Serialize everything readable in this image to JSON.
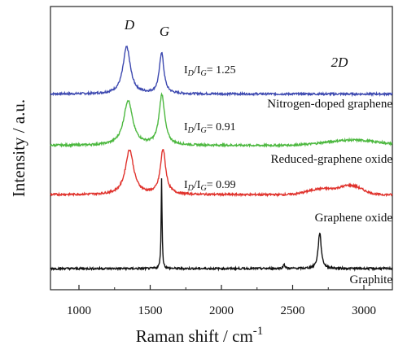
{
  "chart_data": {
    "type": "line",
    "title": "",
    "xlabel": "Raman shift / cm",
    "xlabel_sup": "-1",
    "ylabel": "Intensity / a.u.",
    "xlim": [
      800,
      3200
    ],
    "x_ticks": [
      1000,
      1500,
      2000,
      2500,
      3000
    ],
    "grid": false,
    "legend": "none",
    "peak_labels": [
      {
        "text": "D",
        "x": 1350
      },
      {
        "text": "G",
        "x": 1582
      },
      {
        "text": "2D",
        "x": 2700
      }
    ],
    "series": [
      {
        "name": "Nitrogen-doped graphene",
        "color": "#3d49b0",
        "ratio": "1.25",
        "baseline": 3.9,
        "peaks": [
          {
            "x": 1335,
            "w": 62,
            "h": 1.05
          },
          {
            "x": 1580,
            "w": 38,
            "h": 0.92
          }
        ],
        "broad": []
      },
      {
        "name": "Reduced-graphene oxide",
        "color": "#4cb83f",
        "ratio": "0.91",
        "baseline": 2.75,
        "peaks": [
          {
            "x": 1345,
            "w": 75,
            "h": 1.0
          },
          {
            "x": 1582,
            "w": 48,
            "h": 1.12
          }
        ],
        "broad": [
          {
            "x": 2920,
            "w": 260,
            "h": 0.12
          }
        ]
      },
      {
        "name": "Graphene oxide",
        "color": "#e0322c",
        "ratio": "0.99",
        "baseline": 1.65,
        "peaks": [
          {
            "x": 1355,
            "w": 70,
            "h": 1.0
          },
          {
            "x": 1590,
            "w": 45,
            "h": 1.0
          }
        ],
        "broad": [
          {
            "x": 2700,
            "w": 130,
            "h": 0.13
          },
          {
            "x": 2910,
            "w": 110,
            "h": 0.2
          }
        ]
      },
      {
        "name": "Graphite",
        "color": "#111111",
        "ratio": "",
        "baseline": 0.0,
        "peaks": [
          {
            "x": 1580,
            "w": 8,
            "h": 2.0
          },
          {
            "x": 2440,
            "w": 14,
            "h": 0.1
          },
          {
            "x": 2690,
            "w": 26,
            "h": 0.8
          }
        ],
        "broad": []
      }
    ]
  }
}
